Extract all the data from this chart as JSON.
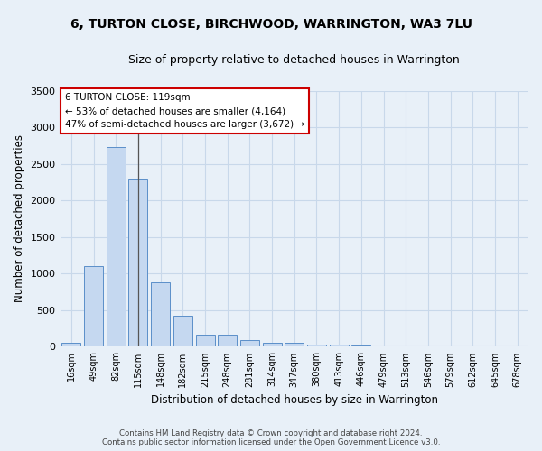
{
  "title": "6, TURTON CLOSE, BIRCHWOOD, WARRINGTON, WA3 7LU",
  "subtitle": "Size of property relative to detached houses in Warrington",
  "xlabel": "Distribution of detached houses by size in Warrington",
  "ylabel": "Number of detached properties",
  "categories": [
    "16sqm",
    "49sqm",
    "82sqm",
    "115sqm",
    "148sqm",
    "182sqm",
    "215sqm",
    "248sqm",
    "281sqm",
    "314sqm",
    "347sqm",
    "380sqm",
    "413sqm",
    "446sqm",
    "479sqm",
    "513sqm",
    "546sqm",
    "579sqm",
    "612sqm",
    "645sqm",
    "678sqm"
  ],
  "values": [
    50,
    1100,
    2730,
    2290,
    880,
    430,
    170,
    165,
    90,
    60,
    50,
    30,
    30,
    20,
    5,
    5,
    0,
    0,
    0,
    0,
    0
  ],
  "bar_color": "#c5d8f0",
  "bar_edge_color": "#5b8fc9",
  "highlight_index": 3,
  "highlight_line_color": "#555555",
  "annotation_title": "6 TURTON CLOSE: 119sqm",
  "annotation_line1": "← 53% of detached houses are smaller (4,164)",
  "annotation_line2": "47% of semi-detached houses are larger (3,672) →",
  "annotation_box_color": "#ffffff",
  "annotation_box_edge_color": "#cc0000",
  "grid_color": "#c8d8ea",
  "background_color": "#e8f0f8",
  "footer_line1": "Contains HM Land Registry data © Crown copyright and database right 2024.",
  "footer_line2": "Contains public sector information licensed under the Open Government Licence v3.0.",
  "ylim": [
    0,
    3500
  ],
  "yticks": [
    0,
    500,
    1000,
    1500,
    2000,
    2500,
    3000,
    3500
  ]
}
